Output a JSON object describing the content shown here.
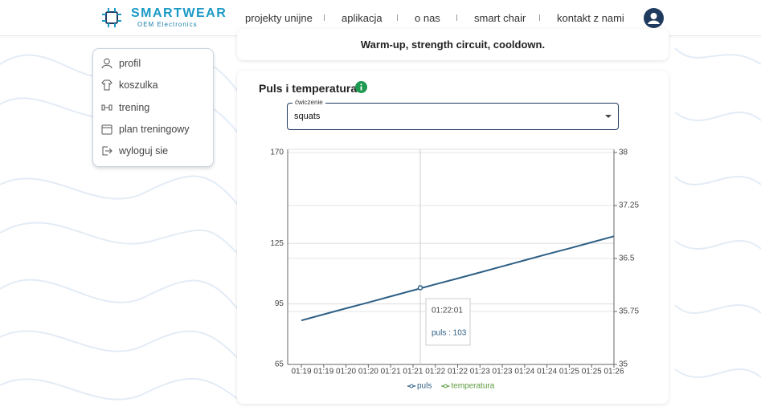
{
  "header": {
    "brand": "SMARTWEAR",
    "subtitle": "OEM Electronics",
    "nav": [
      "projekty unijne",
      "aplikacja",
      "o nas",
      "smart chair",
      "kontakt z nami"
    ]
  },
  "sidebar": {
    "items": [
      "profil",
      "koszulka",
      "trening",
      "plan treningowy",
      "wyloguj sie"
    ]
  },
  "summary": "Warm-up, strength circuit, cooldown.",
  "card": {
    "title": "Puls i temperatura",
    "select": {
      "label": "ćwiczenie",
      "value": "squats"
    }
  },
  "chart_data": {
    "type": "line",
    "categories": [
      "01:19",
      "01:19",
      "01:20",
      "01:20",
      "01:21",
      "01:21",
      "01:22",
      "01:22",
      "01:23",
      "01:23",
      "01:24",
      "01:24",
      "01:25",
      "01:25",
      "01:26"
    ],
    "series": [
      {
        "name": "puls",
        "color": "#2e5f85",
        "values": [
          86.8,
          89.8,
          92.8,
          95.7,
          98.7,
          101.7,
          104.7,
          107.6,
          110.6,
          113.6,
          116.6,
          119.6,
          122.5,
          125.5,
          128.5
        ]
      },
      {
        "name": "temperatura",
        "color": "#5a9a3a",
        "axis": "y2",
        "values": [
          null,
          null,
          null,
          null,
          null,
          null,
          null,
          null,
          null,
          null,
          null,
          null,
          null,
          null,
          null
        ]
      }
    ],
    "ylim": [
      65,
      170
    ],
    "yticks": [
      65,
      95,
      125,
      170
    ],
    "y2lim": [
      35,
      38
    ],
    "y2ticks": [
      35,
      35.75,
      36.5,
      37.25,
      38
    ],
    "grid": true,
    "tooltip": {
      "title": "01:22:01",
      "text": "puls : 103",
      "value": 103
    }
  }
}
